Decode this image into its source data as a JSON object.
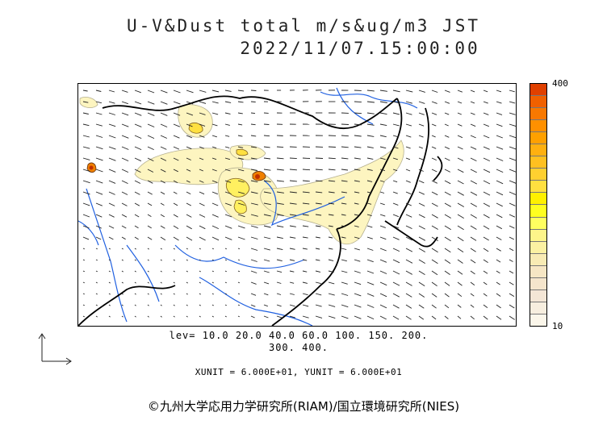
{
  "title": {
    "line1": "U-V&Dust total m/s&ug/m3 JST",
    "line2": "2022/11/07.15:00:00"
  },
  "colorbar": {
    "max_label": "400",
    "min_label": "10",
    "colors": [
      "#e04000",
      "#f06000",
      "#f87800",
      "#ff9000",
      "#ffa000",
      "#ffb010",
      "#ffc020",
      "#ffd030",
      "#ffe040",
      "#fff000",
      "#ffff20",
      "#ffff60",
      "#fdf58a",
      "#fbf1a2",
      "#f8ebb4",
      "#f6e6c4",
      "#f5e5cc",
      "#f4e6d6",
      "#f7eedf",
      "#fbf6ea"
    ]
  },
  "levels": {
    "line1": "lev= 10.0 20.0 40.0 60.0 100. 150. 200.",
    "line2": "300. 400."
  },
  "units": "XUNIT = 6.000E+01, YUNIT = 6.000E+01",
  "credit": "©九州大学応用力学研究所(RIAM)/国立環境研究所(NIES)"
}
